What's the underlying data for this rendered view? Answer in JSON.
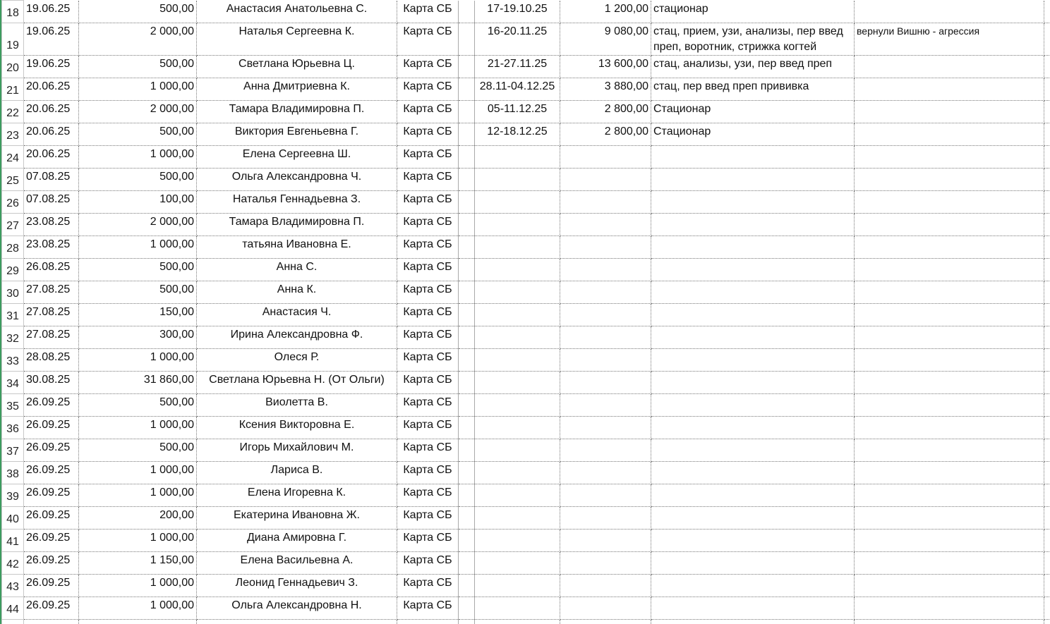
{
  "rows": [
    {
      "row": "18",
      "date": "19.06.25",
      "amount": "500,00",
      "name": "Анастасия Анатольевна С.",
      "payment": "Карта СБ",
      "period": "17-19.10.25",
      "sum": "1 200,00",
      "description": "стационар"
    },
    {
      "row": "19",
      "date": "19.06.25",
      "amount": "2 000,00",
      "name": "Наталья Сергеевна К.",
      "payment": "Карта СБ",
      "period": "16-20.11.25",
      "sum": "9 080,00",
      "description": "стац, прием, узи, анализы, пер введ преп, воротник, стрижка когтей",
      "note": "вернули Вишню - агрессия"
    },
    {
      "row": "20",
      "date": "19.06.25",
      "amount": "500,00",
      "name": "Светлана Юрьевна Ц.",
      "payment": "Карта СБ",
      "period": "21-27.11.25",
      "sum": "13 600,00",
      "description": "стац, анализы, узи, пер введ преп"
    },
    {
      "row": "21",
      "date": "20.06.25",
      "amount": "1 000,00",
      "name": "Анна Дмитриевна К.",
      "payment": "Карта СБ",
      "period": "28.11-04.12.25",
      "sum": "3 880,00",
      "description": "стац, пер введ преп прививка"
    },
    {
      "row": "22",
      "date": "20.06.25",
      "amount": "2 000,00",
      "name": "Тамара Владимировна П.",
      "payment": "Карта СБ",
      "period": "05-11.12.25",
      "sum": "2 800,00",
      "description": "Стационар"
    },
    {
      "row": "23",
      "date": "20.06.25",
      "amount": "500,00",
      "name": "Виктория Евгеньевна Г.",
      "payment": "Карта СБ",
      "period": "12-18.12.25",
      "sum": "2 800,00",
      "description": "Стационар"
    },
    {
      "row": "24",
      "date": "20.06.25",
      "amount": "1 000,00",
      "name": "Елена Сергеевна Ш.",
      "payment": "Карта СБ"
    },
    {
      "row": "25",
      "date": "07.08.25",
      "amount": "500,00",
      "name": "Ольга Александровна Ч.",
      "payment": "Карта СБ"
    },
    {
      "row": "26",
      "date": "07.08.25",
      "amount": "100,00",
      "name": "Наталья Геннадьевна З.",
      "payment": "Карта СБ"
    },
    {
      "row": "27",
      "date": "23.08.25",
      "amount": "2 000,00",
      "name": "Тамара Владимировна П.",
      "payment": "Карта СБ"
    },
    {
      "row": "28",
      "date": "23.08.25",
      "amount": "1 000,00",
      "name": "татьяна Ивановна Е.",
      "payment": "Карта СБ"
    },
    {
      "row": "29",
      "date": "26.08.25",
      "amount": "500,00",
      "name": "Анна С.",
      "payment": "Карта СБ"
    },
    {
      "row": "30",
      "date": "27.08.25",
      "amount": "500,00",
      "name": "Анна К.",
      "payment": "Карта СБ"
    },
    {
      "row": "31",
      "date": "27.08.25",
      "amount": "150,00",
      "name": "Анастасия Ч.",
      "payment": "Карта СБ"
    },
    {
      "row": "32",
      "date": "27.08.25",
      "amount": "300,00",
      "name": "Ирина Александровна Ф.",
      "payment": "Карта СБ"
    },
    {
      "row": "33",
      "date": "28.08.25",
      "amount": "1 000,00",
      "name": "Олеся Р.",
      "payment": "Карта СБ"
    },
    {
      "row": "34",
      "date": "30.08.25",
      "amount": "31 860,00",
      "name": "Светлана Юрьевна Н. (От Ольги)",
      "payment": "Карта СБ"
    },
    {
      "row": "35",
      "date": "26.09.25",
      "amount": "500,00",
      "name": "Виолетта В.",
      "payment": "Карта СБ"
    },
    {
      "row": "36",
      "date": "26.09.25",
      "amount": "1 000,00",
      "name": "Ксения Викторовна Е.",
      "payment": "Карта СБ"
    },
    {
      "row": "37",
      "date": "26.09.25",
      "amount": "500,00",
      "name": "Игорь Михайлович М.",
      "payment": "Карта СБ"
    },
    {
      "row": "38",
      "date": "26.09.25",
      "amount": "1 000,00",
      "name": "Лариса В.",
      "payment": "Карта СБ"
    },
    {
      "row": "39",
      "date": "26.09.25",
      "amount": "1 000,00",
      "name": "Елена Игоревна К.",
      "payment": "Карта СБ"
    },
    {
      "row": "40",
      "date": "26.09.25",
      "amount": "200,00",
      "name": "Екатерина Ивановна Ж.",
      "payment": "Карта СБ"
    },
    {
      "row": "41",
      "date": "26.09.25",
      "amount": "1 000,00",
      "name": "Диана Амировна Г.",
      "payment": "Карта СБ"
    },
    {
      "row": "42",
      "date": "26.09.25",
      "amount": "1 150,00",
      "name": "Елена Васильевна А.",
      "payment": "Карта СБ"
    },
    {
      "row": "43",
      "date": "26.09.25",
      "amount": "1 000,00",
      "name": "Леонид Геннадьевич З.",
      "payment": "Карта СБ"
    },
    {
      "row": "44",
      "date": "26.09.25",
      "amount": "1 000,00",
      "name": "Ольга Александровна Н.",
      "payment": "Карта СБ"
    }
  ]
}
